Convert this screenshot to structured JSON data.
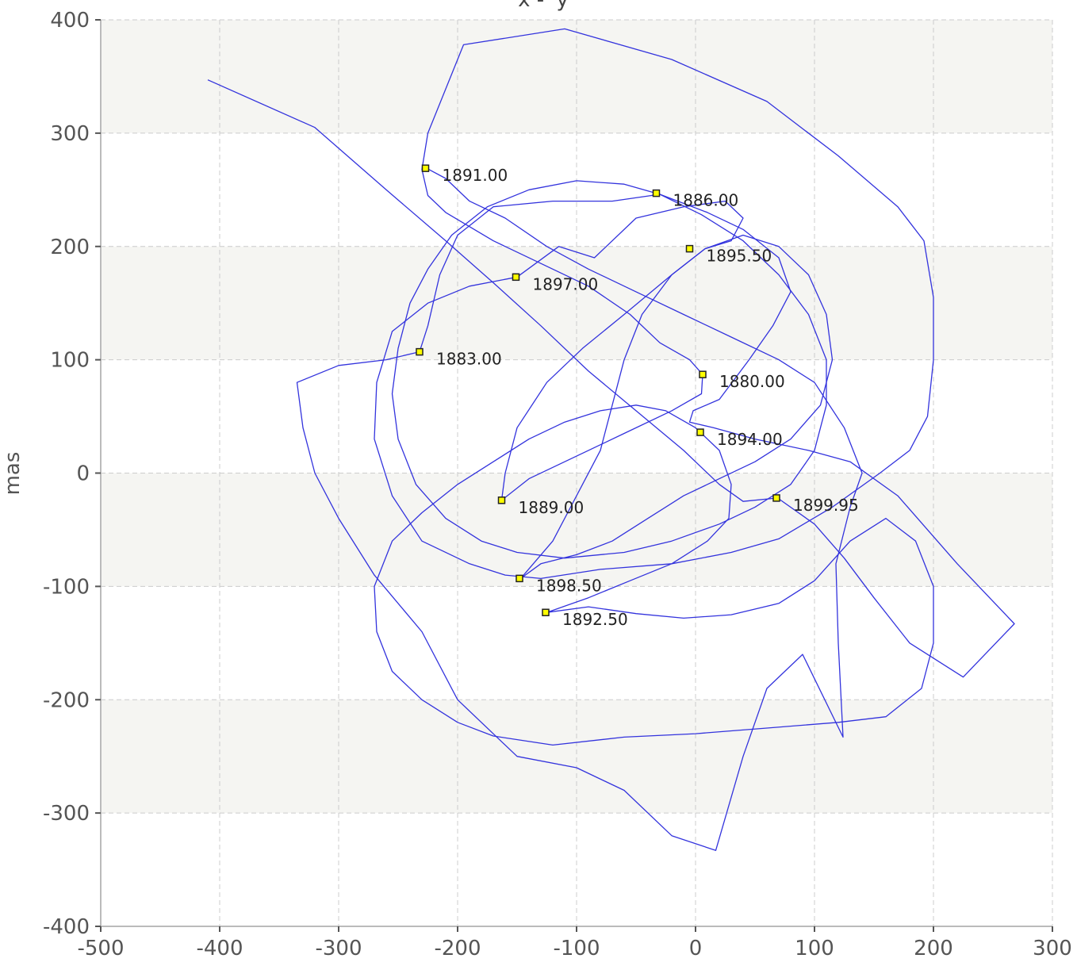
{
  "chart_data": {
    "type": "line",
    "title": "x - 'y",
    "xlabel": "",
    "ylabel": "mas",
    "xlim": [
      -500,
      300
    ],
    "ylim": [
      -400,
      400
    ],
    "x_ticks": [
      -500,
      -400,
      -300,
      -200,
      -100,
      0,
      100,
      200,
      300
    ],
    "y_ticks": [
      -400,
      -300,
      -200,
      -100,
      0,
      100,
      200,
      300,
      400
    ],
    "x_tick_labels": [
      "-500",
      "-400",
      "-300",
      "-200",
      "-100",
      "0",
      "100",
      "200",
      "300"
    ],
    "y_tick_labels": [
      "-400",
      "-300",
      "-200",
      "-100",
      "0",
      "100",
      "200",
      "300",
      "400"
    ],
    "grid": true,
    "colors": {
      "line": "#3333dd",
      "marker_fill": "#ffff00",
      "marker_stroke": "#222222",
      "band": "#f5f5f2",
      "grid": "#cccccc"
    },
    "series": [
      {
        "points": [
          [
            -150,
            173
          ],
          [
            -115,
            200
          ],
          [
            -85,
            190
          ],
          [
            -50,
            225
          ],
          [
            -10,
            235
          ],
          [
            25,
            240
          ],
          [
            40,
            225
          ],
          [
            30,
            205
          ],
          [
            8,
            198
          ],
          [
            -20,
            175
          ],
          [
            -60,
            140
          ],
          [
            -95,
            110
          ],
          [
            -125,
            80
          ],
          [
            -150,
            40
          ],
          [
            -160,
            0
          ],
          [
            -163,
            -24
          ],
          [
            -140,
            -5
          ],
          [
            -100,
            15
          ],
          [
            -60,
            35
          ],
          [
            -20,
            55
          ],
          [
            5,
            70
          ],
          [
            6,
            87
          ],
          [
            -5,
            100
          ],
          [
            -30,
            115
          ],
          [
            -55,
            140
          ],
          [
            -90,
            165
          ],
          [
            -130,
            185
          ],
          [
            -170,
            205
          ],
          [
            -210,
            230
          ],
          [
            -225,
            245
          ],
          [
            -230,
            268
          ],
          [
            -225,
            300
          ],
          [
            -195,
            378
          ],
          [
            -110,
            392
          ],
          [
            -20,
            365
          ],
          [
            60,
            328
          ],
          [
            120,
            280
          ],
          [
            170,
            235
          ],
          [
            192,
            205
          ],
          [
            200,
            155
          ],
          [
            200,
            100
          ],
          [
            195,
            50
          ],
          [
            180,
            20
          ],
          [
            155,
            0
          ],
          [
            115,
            -30
          ],
          [
            70,
            -58
          ],
          [
            30,
            -70
          ],
          [
            -20,
            -80
          ],
          [
            -80,
            -85
          ],
          [
            -130,
            -93
          ],
          [
            -160,
            -90
          ],
          [
            -190,
            -80
          ],
          [
            -230,
            -60
          ],
          [
            -255,
            -20
          ],
          [
            -270,
            30
          ],
          [
            -268,
            80
          ],
          [
            -255,
            125
          ],
          [
            -225,
            150
          ],
          [
            -190,
            165
          ],
          [
            -150,
            173
          ]
        ]
      },
      {
        "points": [
          [
            -410,
            347
          ],
          [
            -320,
            305
          ],
          [
            -260,
            250
          ],
          [
            -210,
            205
          ],
          [
            -170,
            168
          ],
          [
            -130,
            130
          ],
          [
            -90,
            90
          ],
          [
            -50,
            55
          ],
          [
            -10,
            20
          ],
          [
            20,
            -10
          ],
          [
            40,
            -25
          ],
          [
            69,
            -22
          ],
          [
            100,
            -45
          ],
          [
            125,
            -75
          ],
          [
            150,
            -110
          ],
          [
            180,
            -150
          ],
          [
            225,
            -180
          ],
          [
            268,
            -133
          ],
          [
            220,
            -80
          ],
          [
            170,
            -20
          ],
          [
            130,
            10
          ],
          [
            95,
            20
          ],
          [
            50,
            30
          ],
          [
            15,
            40
          ],
          [
            -5,
            45
          ],
          [
            -2,
            55
          ],
          [
            20,
            65
          ],
          [
            45,
            100
          ],
          [
            65,
            130
          ],
          [
            80,
            160
          ],
          [
            70,
            190
          ],
          [
            40,
            215
          ],
          [
            10,
            230
          ],
          [
            -30,
            246
          ],
          [
            -70,
            240
          ],
          [
            -120,
            240
          ],
          [
            -170,
            235
          ],
          [
            -200,
            210
          ],
          [
            -215,
            175
          ],
          [
            -225,
            130
          ],
          [
            -232,
            107
          ],
          [
            -260,
            100
          ],
          [
            -300,
            95
          ],
          [
            -335,
            80
          ],
          [
            -330,
            40
          ],
          [
            -320,
            0
          ],
          [
            -300,
            -40
          ],
          [
            -270,
            -90
          ],
          [
            -230,
            -140
          ],
          [
            -200,
            -200
          ],
          [
            -150,
            -250
          ],
          [
            -100,
            -260
          ],
          [
            -60,
            -280
          ],
          [
            -20,
            -320
          ],
          [
            17,
            -333
          ],
          [
            40,
            -250
          ],
          [
            60,
            -190
          ],
          [
            90,
            -160
          ],
          [
            124,
            -233
          ],
          [
            120,
            -150
          ],
          [
            118,
            -80
          ],
          [
            130,
            -30
          ],
          [
            140,
            0
          ],
          [
            125,
            40
          ],
          [
            100,
            80
          ],
          [
            70,
            100
          ],
          [
            30,
            120
          ],
          [
            -10,
            140
          ],
          [
            -50,
            160
          ],
          [
            -90,
            180
          ],
          [
            -125,
            200
          ],
          [
            -160,
            225
          ],
          [
            -190,
            240
          ],
          [
            -210,
            260
          ],
          [
            -226,
            269
          ]
        ]
      },
      {
        "points": [
          [
            -125,
            -123
          ],
          [
            -90,
            -110
          ],
          [
            -55,
            -95
          ],
          [
            -20,
            -80
          ],
          [
            10,
            -60
          ],
          [
            28,
            -40
          ],
          [
            30,
            -10
          ],
          [
            20,
            20
          ],
          [
            0,
            40
          ],
          [
            -25,
            55
          ],
          [
            -50,
            60
          ],
          [
            -80,
            55
          ],
          [
            -110,
            45
          ],
          [
            -140,
            30
          ],
          [
            -170,
            10
          ],
          [
            -200,
            -10
          ],
          [
            -230,
            -35
          ],
          [
            -255,
            -60
          ],
          [
            -270,
            -100
          ],
          [
            -268,
            -140
          ],
          [
            -255,
            -175
          ],
          [
            -230,
            -200
          ],
          [
            -200,
            -220
          ],
          [
            -170,
            -232
          ],
          [
            -120,
            -240
          ],
          [
            -60,
            -233
          ],
          [
            0,
            -230
          ],
          [
            60,
            -225
          ],
          [
            120,
            -220
          ],
          [
            160,
            -215
          ],
          [
            190,
            -190
          ],
          [
            200,
            -150
          ],
          [
            200,
            -100
          ],
          [
            185,
            -60
          ],
          [
            160,
            -40
          ],
          [
            130,
            -60
          ],
          [
            100,
            -95
          ],
          [
            70,
            -115
          ],
          [
            30,
            -125
          ],
          [
            -10,
            -128
          ],
          [
            -50,
            -124
          ],
          [
            -90,
            -118
          ],
          [
            -125,
            -123
          ]
        ]
      },
      {
        "points": [
          [
            -147,
            -93
          ],
          [
            -120,
            -60
          ],
          [
            -100,
            -20
          ],
          [
            -80,
            20
          ],
          [
            -70,
            60
          ],
          [
            -60,
            100
          ],
          [
            -45,
            140
          ],
          [
            -20,
            175
          ],
          [
            8,
            198
          ],
          [
            40,
            210
          ],
          [
            70,
            200
          ],
          [
            95,
            175
          ],
          [
            110,
            140
          ],
          [
            115,
            100
          ],
          [
            105,
            60
          ],
          [
            80,
            30
          ],
          [
            50,
            10
          ],
          [
            20,
            -5
          ],
          [
            -10,
            -20
          ],
          [
            -40,
            -40
          ],
          [
            -70,
            -60
          ],
          [
            -100,
            -72
          ],
          [
            -130,
            -80
          ],
          [
            -147,
            -93
          ]
        ]
      },
      {
        "points": [
          [
            -30,
            246
          ],
          [
            -60,
            255
          ],
          [
            -100,
            258
          ],
          [
            -140,
            250
          ],
          [
            -175,
            235
          ],
          [
            -205,
            210
          ],
          [
            -225,
            180
          ],
          [
            -240,
            150
          ],
          [
            -250,
            110
          ],
          [
            -255,
            70
          ],
          [
            -250,
            30
          ],
          [
            -235,
            -10
          ],
          [
            -210,
            -40
          ],
          [
            -180,
            -60
          ],
          [
            -150,
            -70
          ],
          [
            -110,
            -75
          ],
          [
            -60,
            -70
          ],
          [
            -20,
            -60
          ],
          [
            20,
            -45
          ],
          [
            50,
            -30
          ],
          [
            80,
            -10
          ],
          [
            100,
            20
          ],
          [
            110,
            60
          ],
          [
            110,
            100
          ],
          [
            95,
            140
          ],
          [
            70,
            175
          ],
          [
            40,
            205
          ],
          [
            5,
            228
          ],
          [
            -30,
            246
          ]
        ]
      }
    ],
    "markers": [
      {
        "x": 6,
        "y": 87,
        "label": "1880.00"
      },
      {
        "x": -232,
        "y": 107,
        "label": "1883.00"
      },
      {
        "x": -33,
        "y": 247,
        "label": "1886.00"
      },
      {
        "x": -163,
        "y": -24,
        "label": "1889.00"
      },
      {
        "x": -227,
        "y": 269,
        "label": "1891.00"
      },
      {
        "x": -126,
        "y": -123,
        "label": "1892.50"
      },
      {
        "x": 4,
        "y": 36,
        "label": "1894.00"
      },
      {
        "x": -5,
        "y": 198,
        "label": "1895.50"
      },
      {
        "x": -151,
        "y": 173,
        "label": "1897.00"
      },
      {
        "x": -148,
        "y": -93,
        "label": "1898.50"
      },
      {
        "x": 68,
        "y": -22,
        "label": "1899.95"
      }
    ]
  }
}
